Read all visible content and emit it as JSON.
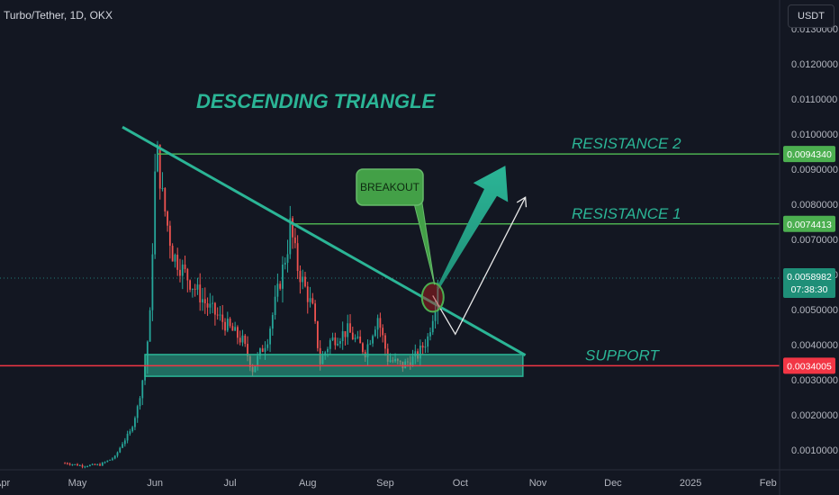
{
  "header": {
    "symbol_line": "Turbo/Tether, 1D, OKX",
    "currency_button": "USDT"
  },
  "colors": {
    "background": "#131722",
    "up": "#26a69a",
    "down": "#ef5350",
    "pattern_green": "#2bb596",
    "level_green": "#4caf50",
    "support_red": "#f23645"
  },
  "chart_data": {
    "type": "candlestick",
    "title": "DESCENDING TRIANGLE",
    "x_ticks": [
      "Apr",
      "May",
      "Jun",
      "Jul",
      "Aug",
      "Sep",
      "Oct",
      "Nov",
      "Dec",
      "2025",
      "Feb"
    ],
    "y_ticks": [
      0.001,
      0.002,
      0.003,
      0.004,
      0.005,
      0.006,
      0.007,
      0.008,
      0.009,
      0.01,
      0.011,
      0.012,
      0.013
    ],
    "y_tick_labels": [
      "0.0010000",
      "0.0020000",
      "0.0030000",
      "0.0040000",
      "0.0050000",
      "0.0060000",
      "0.0070000",
      "0.0080000",
      "0.0090000",
      "0.0100000",
      "0.0110000",
      "0.0120000",
      "0.0130000"
    ],
    "ylim": [
      0.0,
      0.0133
    ],
    "grid": false,
    "price_path": [
      [
        "2024-04-26",
        0.00063
      ],
      [
        "2024-05-03",
        0.00055
      ],
      [
        "2024-05-10",
        0.00058
      ],
      [
        "2024-05-16",
        0.0008
      ],
      [
        "2024-05-19",
        0.0012
      ],
      [
        "2024-05-22",
        0.0015
      ],
      [
        "2024-05-25",
        0.0022
      ],
      [
        "2024-05-28",
        0.0034
      ],
      [
        "2024-05-30",
        0.0048
      ],
      [
        "2024-06-01",
        0.0088
      ],
      [
        "2024-06-02",
        0.0094
      ],
      [
        "2024-06-04",
        0.0082
      ],
      [
        "2024-06-08",
        0.0066
      ],
      [
        "2024-06-15",
        0.0058
      ],
      [
        "2024-06-22",
        0.0051
      ],
      [
        "2024-06-29",
        0.0046
      ],
      [
        "2024-07-06",
        0.0041
      ],
      [
        "2024-07-10",
        0.0033
      ],
      [
        "2024-07-16",
        0.0042
      ],
      [
        "2024-07-20",
        0.0055
      ],
      [
        "2024-07-24",
        0.0068
      ],
      [
        "2024-07-25",
        0.0074
      ],
      [
        "2024-07-28",
        0.0062
      ],
      [
        "2024-08-03",
        0.005
      ],
      [
        "2024-08-06",
        0.0035
      ],
      [
        "2024-08-10",
        0.0041
      ],
      [
        "2024-08-17",
        0.0044
      ],
      [
        "2024-08-24",
        0.0038
      ],
      [
        "2024-08-29",
        0.0048
      ],
      [
        "2024-09-02",
        0.0036
      ],
      [
        "2024-09-08",
        0.0034
      ],
      [
        "2024-09-14",
        0.0037
      ],
      [
        "2024-09-18",
        0.0042
      ],
      [
        "2024-09-21",
        0.0052
      ],
      [
        "2024-09-22",
        0.0059
      ]
    ],
    "levels": [
      {
        "name": "RESISTANCE 2",
        "value": 0.009434,
        "label": "0.0094340",
        "color": "#4caf50"
      },
      {
        "name": "RESISTANCE 1",
        "value": 0.0074413,
        "label": "0.0074413",
        "color": "#4caf50"
      },
      {
        "name": "SUPPORT",
        "value": 0.0034005,
        "label": "0.0034005",
        "color": "#f23645"
      }
    ],
    "current_price": {
      "label": "0.0058982",
      "countdown": "07:38:30",
      "value": 0.0058982
    },
    "support_zone": {
      "from": "2024-05-28",
      "to": "2024-10-26",
      "low": 0.0031,
      "high": 0.00372
    },
    "trendline": {
      "from": [
        "2024-05-19",
        0.0102
      ],
      "to": [
        "2024-10-27",
        0.0037
      ]
    },
    "breakout_marker": {
      "date": "2024-09-20",
      "value": 0.0054
    },
    "annotations": {
      "title": "DESCENDING TRIANGLE",
      "breakout": "BREAKOUT",
      "resistance2": "RESISTANCE 2",
      "resistance1": "RESISTANCE 1",
      "support": "SUPPORT"
    },
    "projection_path": [
      [
        "2024-09-20",
        0.0054
      ],
      [
        "2024-09-29",
        0.0043
      ],
      [
        "2024-10-27",
        0.0082
      ]
    ],
    "big_arrow": {
      "from": [
        "2024-09-22",
        0.0056
      ],
      "to": [
        "2024-10-19",
        0.0091
      ]
    }
  }
}
